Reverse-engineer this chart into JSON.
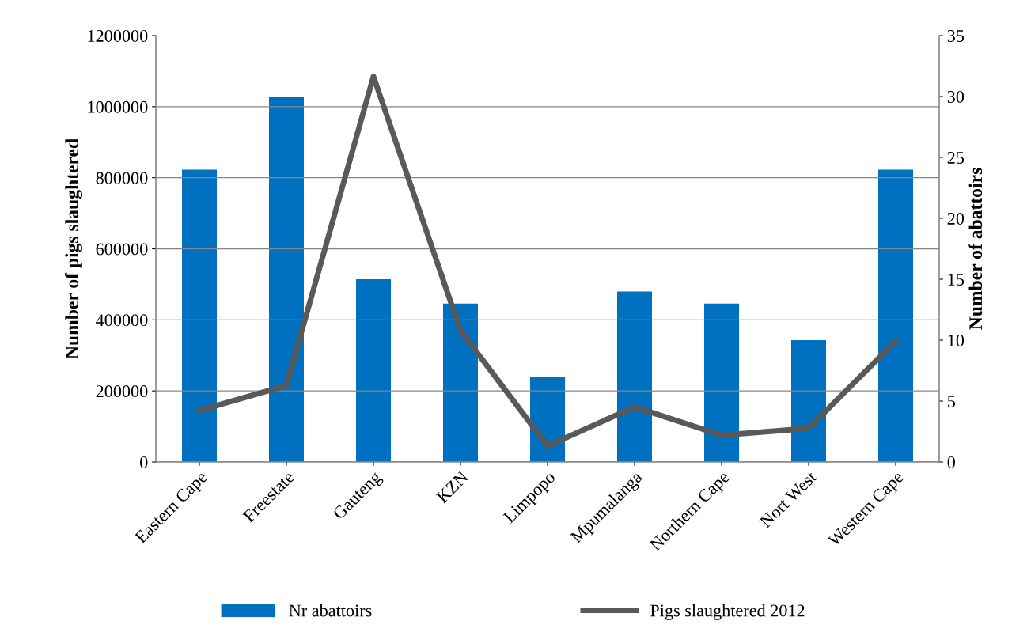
{
  "chart_data": {
    "type": "bar",
    "categories": [
      "Eastern Cape",
      "Freestate",
      "Gauteng",
      "KZN",
      "Limpopo",
      "Mpumalanga",
      "Northern Cape",
      "Nort West",
      "Western Cape"
    ],
    "series": [
      {
        "name": "Nr abattoirs",
        "axis": "y2",
        "color": "#0070c0",
        "values": [
          24,
          30,
          15,
          13,
          7,
          14,
          13,
          10,
          24
        ]
      },
      {
        "name": "Pigs slaughtered 2012",
        "type": "line",
        "color": "#595959",
        "values": [
          145000,
          215000,
          1085000,
          370000,
          45000,
          155000,
          75000,
          95000,
          340000
        ]
      }
    ],
    "ylabel": "Number of pigs slaughtered",
    "y2label": "Number of abattoirs",
    "ylim": [
      0,
      1200000
    ],
    "yticks": [
      0,
      200000,
      400000,
      600000,
      800000,
      1000000,
      1200000
    ],
    "y2lim": [
      0,
      35
    ],
    "y2ticks": [
      0,
      5,
      10,
      15,
      20,
      25,
      30,
      35
    ],
    "grid": "y",
    "legend": "bottom",
    "marker": "none",
    "line_style": "solid"
  }
}
